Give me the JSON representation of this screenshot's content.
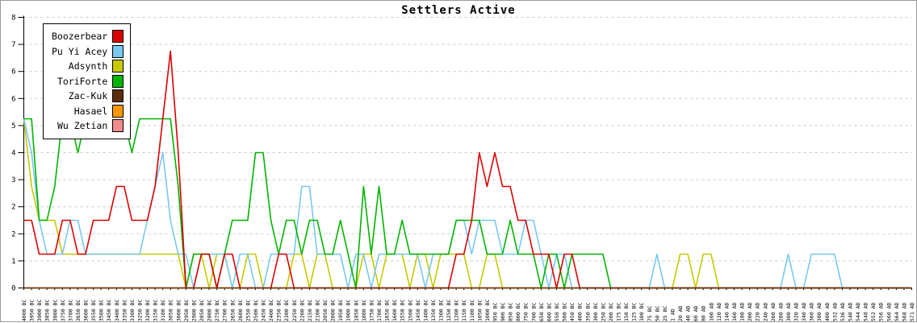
{
  "title": "Settlers Active",
  "colors": {
    "background": "#ffffff",
    "border": "#9a9a9a",
    "axis": "#000000",
    "gridline": "#c8c8c8",
    "title_text": "#000000"
  },
  "chart_data": {
    "type": "line",
    "title": "Settlers Active",
    "xlabel": "",
    "ylabel": "",
    "ylim": [
      0,
      8
    ],
    "grid": "horizontal-dashed",
    "legend_position": "top-left",
    "y_tick_labels_top_to_bottom": [
      "8",
      "7",
      "6",
      "6",
      "5",
      "4",
      "3",
      "2",
      "2",
      "1",
      "0"
    ],
    "x_tick_labels": [
      "4000 BC",
      "3950 BC",
      "3900 BC",
      "3850 BC",
      "3800 BC",
      "3750 BC",
      "3700 BC",
      "3650 BC",
      "3600 BC",
      "3550 BC",
      "3500 BC",
      "3450 BC",
      "3400 BC",
      "3350 BC",
      "3300 BC",
      "3250 BC",
      "3200 BC",
      "3150 BC",
      "3100 BC",
      "3050 BC",
      "3000 BC",
      "2950 BC",
      "2900 BC",
      "2850 BC",
      "2800 BC",
      "2750 BC",
      "2700 BC",
      "2650 BC",
      "2600 BC",
      "2550 BC",
      "2500 BC",
      "2450 BC",
      "2400 BC",
      "2350 BC",
      "2300 BC",
      "2250 BC",
      "2200 BC",
      "2150 BC",
      "2100 BC",
      "2050 BC",
      "2000 BC",
      "1950 BC",
      "1900 BC",
      "1850 BC",
      "1800 BC",
      "1750 BC",
      "1700 BC",
      "1650 BC",
      "1600 BC",
      "1550 BC",
      "1500 BC",
      "1450 BC",
      "1400 BC",
      "1350 BC",
      "1300 BC",
      "1250 BC",
      "1200 BC",
      "1150 BC",
      "1100 BC",
      "1050 BC",
      "1000 BC",
      "950 BC",
      "900 BC",
      "850 BC",
      "800 BC",
      "750 BC",
      "700 BC",
      "650 BC",
      "600 BC",
      "550 BC",
      "500 BC",
      "450 BC",
      "400 BC",
      "350 BC",
      "300 BC",
      "250 BC",
      "200 BC",
      "175 BC",
      "150 BC",
      "125 BC",
      "100 BC",
      "75 BC",
      "50 BC",
      "25 BC",
      "1 AD",
      "20 AD",
      "40 AD",
      "60 AD",
      "80 AD",
      "100 AD",
      "120 AD",
      "140 AD",
      "160 AD",
      "180 AD",
      "200 AD",
      "220 AD",
      "240 AD",
      "260 AD",
      "280 AD",
      "300 AD",
      "320 AD",
      "340 AD",
      "360 AD",
      "380 AD",
      "400 AD",
      "532 AD",
      "536 AD",
      "540 AD",
      "544 AD",
      "548 AD",
      "552 AD",
      "556 AD",
      "560 AD",
      "564 AD",
      "568 AD",
      "571 AD"
    ],
    "draw_order": [
      "Wu Zetian",
      "Hasael",
      "Adsynth",
      "Pu Yi Acey",
      "ToriForte",
      "Boozerbear",
      "Zac-Kuk"
    ],
    "series": [
      {
        "name": "Boozerbear",
        "color": "#dc0000",
        "values": [
          2,
          2,
          1,
          1,
          1,
          2,
          2,
          1,
          1,
          2,
          2,
          2,
          3,
          3,
          2,
          2,
          2,
          3,
          5,
          7,
          4,
          0,
          0,
          1,
          1,
          0,
          1,
          1,
          0,
          0,
          0,
          0,
          0,
          1,
          1,
          0,
          0,
          0,
          0,
          0,
          0,
          0,
          0,
          0,
          0,
          0,
          0,
          0,
          0,
          0,
          0,
          0,
          0,
          0,
          0,
          0,
          1,
          1,
          2,
          4,
          3,
          4,
          3,
          3,
          2,
          2,
          1,
          1,
          1,
          0,
          1,
          1,
          0,
          0,
          0,
          0,
          0,
          0,
          0,
          0,
          0,
          0,
          0,
          0,
          0,
          0,
          0,
          0,
          0,
          0,
          0,
          0,
          0,
          0,
          0,
          0,
          0,
          0,
          0,
          0,
          0,
          0,
          0,
          0,
          0,
          0,
          0,
          0,
          0,
          0,
          0,
          0,
          0,
          0,
          0,
          0
        ]
      },
      {
        "name": "Pu Yi Acey",
        "color": "#78c8f0",
        "values": [
          5,
          4,
          2,
          1,
          1,
          1,
          2,
          2,
          1,
          1,
          1,
          1,
          1,
          1,
          1,
          1,
          2,
          3,
          4,
          2,
          1,
          1,
          0,
          1,
          1,
          1,
          1,
          0,
          1,
          1,
          0,
          0,
          1,
          1,
          1,
          1,
          3,
          3,
          1,
          1,
          1,
          1,
          0,
          1,
          1,
          0,
          1,
          1,
          1,
          1,
          1,
          1,
          0,
          1,
          1,
          1,
          2,
          2,
          1,
          2,
          2,
          2,
          1,
          1,
          1,
          2,
          2,
          1,
          0,
          1,
          1,
          0,
          0,
          0,
          0,
          0,
          0,
          0,
          0,
          0,
          0,
          0,
          1,
          0,
          0,
          0,
          0,
          0,
          0,
          0,
          0,
          0,
          0,
          0,
          0,
          0,
          0,
          0,
          0,
          1,
          0,
          0,
          1,
          1,
          1,
          1,
          0,
          0,
          0,
          0,
          0,
          0,
          0,
          0,
          0,
          0
        ]
      },
      {
        "name": "Adsynth",
        "color": "#c8c800",
        "values": [
          5,
          3,
          2,
          2,
          2,
          1,
          1,
          1,
          1,
          1,
          1,
          1,
          1,
          1,
          1,
          1,
          1,
          1,
          1,
          1,
          1,
          0,
          1,
          1,
          0,
          1,
          1,
          0,
          0,
          1,
          1,
          0,
          0,
          0,
          0,
          1,
          1,
          0,
          1,
          1,
          0,
          0,
          0,
          0,
          1,
          1,
          0,
          1,
          1,
          1,
          0,
          1,
          1,
          0,
          1,
          1,
          1,
          1,
          0,
          0,
          1,
          1,
          0,
          0,
          0,
          0,
          0,
          0,
          0,
          0,
          0,
          0,
          0,
          0,
          0,
          0,
          0,
          0,
          0,
          0,
          0,
          0,
          0,
          0,
          0,
          1,
          1,
          0,
          1,
          1,
          0,
          0,
          0,
          0,
          0,
          0,
          0,
          0,
          0,
          0,
          0,
          0,
          0,
          0,
          0,
          0,
          0,
          0,
          0,
          0,
          0,
          0,
          0,
          0,
          0,
          0
        ]
      },
      {
        "name": "ToriForte",
        "color": "#00b400",
        "values": [
          5,
          5,
          2,
          2,
          3,
          5,
          5,
          4,
          5,
          5,
          5,
          5,
          5,
          5,
          4,
          5,
          5,
          5,
          5,
          5,
          3,
          0,
          1,
          1,
          1,
          0,
          1,
          2,
          2,
          2,
          4,
          4,
          2,
          1,
          2,
          2,
          1,
          2,
          2,
          1,
          1,
          2,
          1,
          0,
          3,
          1,
          3,
          1,
          1,
          2,
          1,
          1,
          1,
          1,
          1,
          1,
          2,
          2,
          2,
          2,
          1,
          1,
          1,
          2,
          1,
          1,
          1,
          0,
          1,
          1,
          0,
          1,
          1,
          1,
          1,
          1,
          0,
          0,
          0,
          0,
          0,
          0,
          0,
          0,
          0,
          0,
          0,
          0,
          0,
          0,
          0,
          0,
          0,
          0,
          0,
          0,
          0,
          0,
          0,
          0,
          0,
          0,
          0,
          0,
          0,
          0,
          0,
          0,
          0,
          0,
          0,
          0,
          0,
          0,
          0,
          0
        ]
      },
      {
        "name": "Zac-Kuk",
        "color": "#5a2d0c",
        "values": [
          0,
          0,
          0,
          0,
          0,
          0,
          0,
          0,
          0,
          0,
          0,
          0,
          0,
          0,
          0,
          0,
          0,
          0,
          0,
          0,
          0,
          0,
          0,
          0,
          0,
          0,
          0,
          0,
          0,
          0,
          0,
          0,
          0,
          0,
          0,
          0,
          0,
          0,
          0,
          0,
          0,
          0,
          0,
          0,
          0,
          0,
          0,
          0,
          0,
          0,
          0,
          0,
          0,
          0,
          0,
          0,
          0,
          0,
          0,
          0,
          0,
          0,
          0,
          0,
          0,
          0,
          0,
          0,
          0,
          0,
          0,
          0,
          0,
          0,
          0,
          0,
          0,
          0,
          0,
          0,
          0,
          0,
          0,
          0,
          0,
          0,
          0,
          0,
          0,
          0,
          0,
          0,
          0,
          0,
          0,
          0,
          0,
          0,
          0,
          0,
          0,
          0,
          0,
          0,
          0,
          0,
          0,
          0,
          0,
          0,
          0,
          0,
          0,
          0,
          0,
          0
        ]
      },
      {
        "name": "Hasael",
        "color": "#ff9600",
        "values": [
          0,
          0,
          0,
          0,
          0,
          0,
          0,
          0,
          0,
          0,
          0,
          0,
          0,
          0,
          0,
          0,
          0,
          0,
          0,
          0,
          0,
          0,
          0,
          0,
          0,
          0,
          0,
          0,
          0,
          0,
          0,
          0,
          0,
          0,
          0,
          0,
          0,
          0,
          0,
          0,
          0,
          0,
          0,
          0,
          0,
          0,
          0,
          0,
          0,
          0,
          0,
          0,
          0,
          0,
          0,
          0,
          0,
          0,
          0,
          0,
          0,
          0,
          0,
          0,
          0,
          0,
          0,
          0,
          0,
          0,
          0,
          0,
          0,
          0,
          0,
          0,
          0,
          0,
          0,
          0,
          0,
          0,
          0,
          0,
          0,
          0,
          0,
          0,
          0,
          0,
          0,
          0,
          0,
          0,
          0,
          0,
          0,
          0,
          0,
          0,
          0,
          0,
          0,
          0,
          0,
          0,
          0,
          0,
          0,
          0,
          0,
          0,
          0,
          0,
          0,
          0
        ]
      },
      {
        "name": "Wu Zetian",
        "color": "#f08c8c",
        "values": [
          0,
          0,
          0,
          0,
          0,
          0,
          0,
          0,
          0,
          0,
          0,
          0,
          0,
          0,
          0,
          0,
          0,
          0,
          0,
          0,
          0,
          0,
          0,
          0,
          0,
          0,
          0,
          0,
          0,
          0,
          0,
          0,
          0,
          0,
          0,
          0,
          0,
          0,
          0,
          0,
          0,
          0,
          0,
          0,
          0,
          0,
          0,
          0,
          0,
          0,
          0,
          0,
          0,
          0,
          0,
          0,
          0,
          0,
          0,
          0,
          0,
          0,
          0,
          0,
          0,
          0,
          0,
          0,
          0,
          0,
          0,
          0,
          0,
          0,
          0,
          0,
          0,
          0,
          0,
          0,
          0,
          0,
          0,
          0,
          0,
          0,
          0,
          0,
          0,
          0,
          0,
          0,
          0,
          0,
          0,
          0,
          0,
          0,
          0,
          0,
          0,
          0,
          0,
          0,
          0,
          0,
          0,
          0,
          0,
          0,
          0,
          0,
          0,
          0,
          0,
          0
        ]
      }
    ]
  }
}
